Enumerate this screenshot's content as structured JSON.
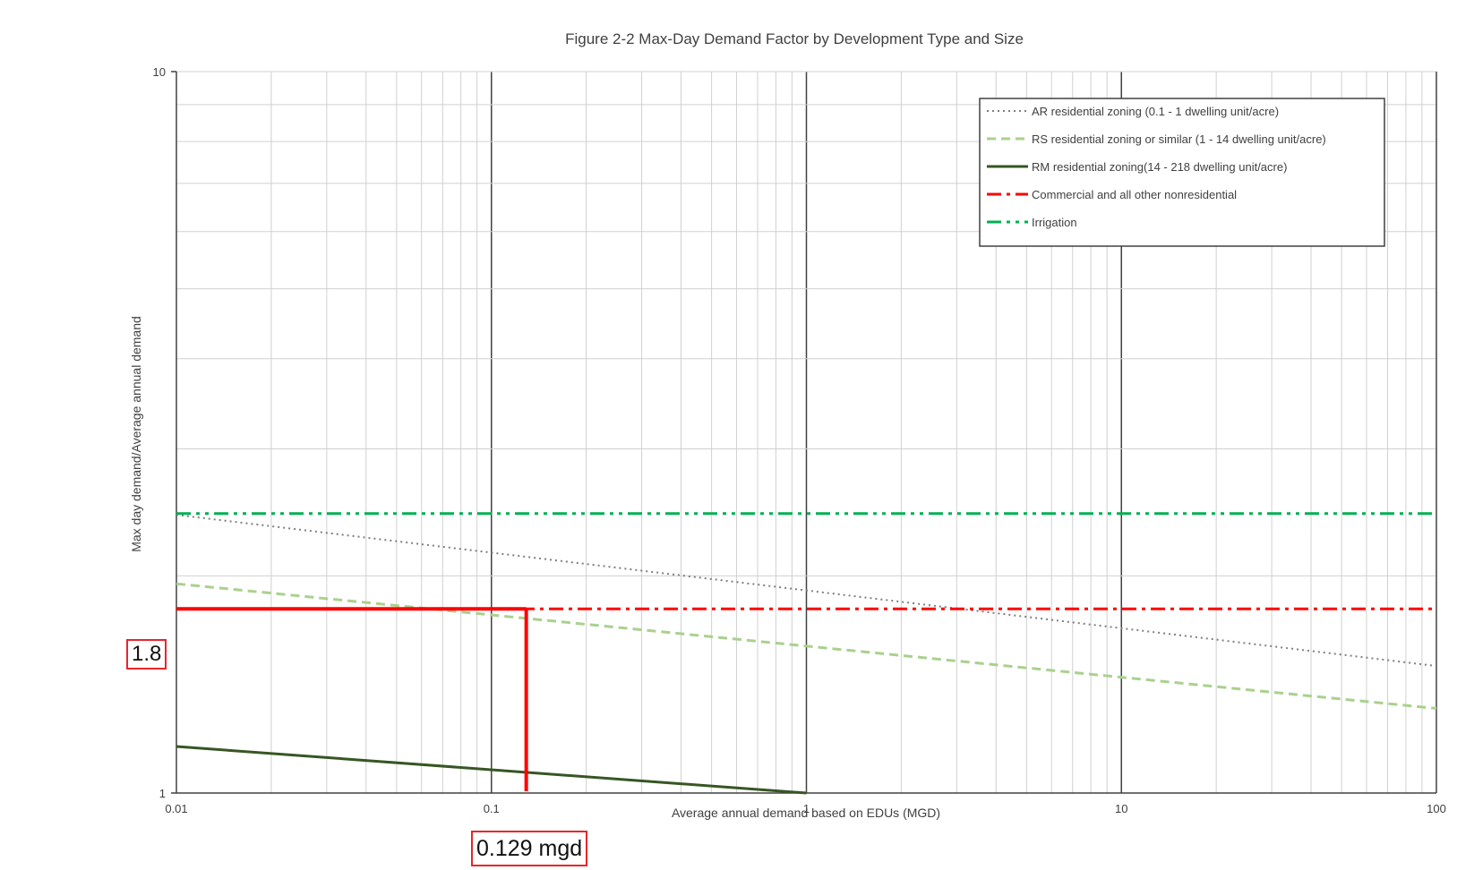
{
  "chart_data": {
    "type": "line",
    "title": "Figure 2-2 Max-Day Demand Factor by Development Type and Size",
    "xlabel": "Average annual demand based on EDUs (MGD)",
    "ylabel": "Max day demand/Average annual demand",
    "xscale": "log",
    "yscale": "log",
    "xlim": [
      0.01,
      100
    ],
    "ylim": [
      1,
      10
    ],
    "xticks": [
      "0.01",
      "0.1",
      "1",
      "10",
      "100"
    ],
    "yticks": [
      "1",
      "10"
    ],
    "grid": true,
    "legend_position": "top-right",
    "series": [
      {
        "name": "AR residential zoning (0.1 - 1 dwelling unit/acre)",
        "style": "dotted",
        "color": "#7f7f7f",
        "x": [
          0.01,
          100
        ],
        "y": [
          2.43,
          1.5
        ]
      },
      {
        "name": "RS residential zoning or similar (1 - 14 dwelling unit/acre)",
        "style": "dashed",
        "color": "#a9d18e",
        "x": [
          0.01,
          100
        ],
        "y": [
          1.95,
          1.31
        ]
      },
      {
        "name": "RM residential zoning(14 - 218 dwelling unit/acre)",
        "style": "solid",
        "color": "#375623",
        "x": [
          0.01,
          1
        ],
        "y": [
          1.16,
          1.0
        ]
      },
      {
        "name": "Commercial and all other nonresidential",
        "style": "dashdot",
        "color": "#ff0000",
        "x": [
          0.01,
          100
        ],
        "y": [
          1.8,
          1.8
        ]
      },
      {
        "name": "Irrigation",
        "style": "dashdotdot",
        "color": "#00b050",
        "x": [
          0.01,
          100
        ],
        "y": [
          2.44,
          2.44
        ]
      }
    ],
    "annotations": [
      {
        "label": "1.8",
        "axis": "y",
        "value": 1.8
      },
      {
        "label": "0.129 mgd",
        "axis": "x",
        "value": 0.129
      }
    ],
    "reference_lines": {
      "x": 0.129,
      "y": 1.8,
      "color": "#ff0000"
    }
  }
}
